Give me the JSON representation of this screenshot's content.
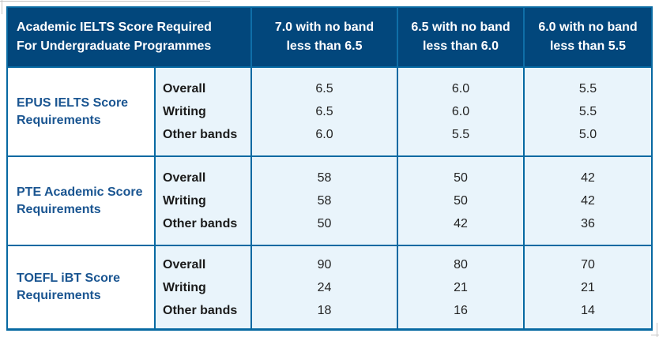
{
  "table": {
    "header": {
      "title": "Academic IELTS Score Required For Undergraduate Programmes",
      "title_lines": [
        "Academic IELTS Score Required",
        "For Undergraduate Programmes"
      ],
      "columns": [
        "7.0 with no band less than 6.5",
        "6.5 with no band less than 6.0",
        "6.0 with no band less than 5.5"
      ]
    },
    "metric_labels": [
      "Overall",
      "Writing",
      "Other bands"
    ],
    "rows": [
      {
        "label": "EPUS IELTS Score Requirements",
        "values": [
          [
            "6.5",
            "6.5",
            "6.0"
          ],
          [
            "6.0",
            "6.0",
            "5.5"
          ],
          [
            "5.5",
            "5.5",
            "5.0"
          ]
        ]
      },
      {
        "label": "PTE Academic Score Requirements",
        "values": [
          [
            "58",
            "58",
            "50"
          ],
          [
            "50",
            "50",
            "42"
          ],
          [
            "42",
            "42",
            "36"
          ]
        ]
      },
      {
        "label": "TOEFL iBT Score Requirements",
        "values": [
          [
            "90",
            "24",
            "18"
          ],
          [
            "80",
            "21",
            "16"
          ],
          [
            "70",
            "21",
            "14"
          ]
        ]
      }
    ],
    "colors": {
      "header_background": "#02477c",
      "header_text": "#ffffff",
      "border": "#0769a2",
      "value_cell_background": "#e9f4fb",
      "row_label_text": "#1a5591",
      "body_text": "#1b1b1b"
    }
  }
}
